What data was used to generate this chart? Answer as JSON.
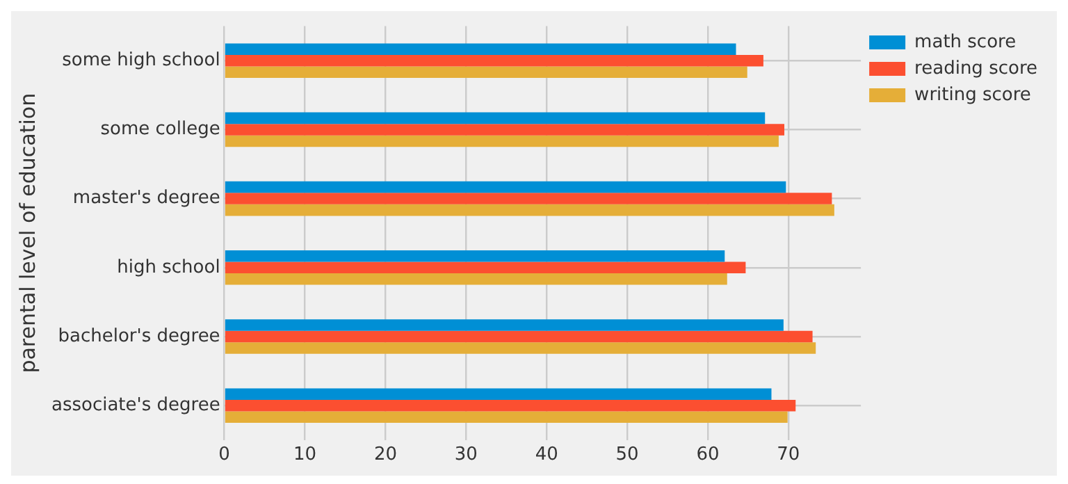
{
  "chart_data": {
    "type": "bar",
    "orientation": "horizontal",
    "ylabel": "parental level of education",
    "categories": [
      "some high school",
      "some college",
      "master's degree",
      "high school",
      "bachelor's degree",
      "associate's degree"
    ],
    "series": [
      {
        "name": "math score",
        "color": "#008fd5",
        "values": [
          63.5,
          67.1,
          69.7,
          62.1,
          69.4,
          67.9
        ]
      },
      {
        "name": "reading score",
        "color": "#fc4f30",
        "values": [
          66.9,
          69.5,
          75.4,
          64.7,
          73.0,
          70.9
        ]
      },
      {
        "name": "writing score",
        "color": "#e5ae38",
        "values": [
          64.9,
          68.8,
          75.7,
          62.4,
          73.4,
          69.9
        ]
      }
    ],
    "xlim": [
      0,
      79
    ],
    "xticks": [
      0,
      10,
      20,
      30,
      40,
      50,
      60,
      70
    ],
    "grid": true,
    "legend": "top right"
  }
}
